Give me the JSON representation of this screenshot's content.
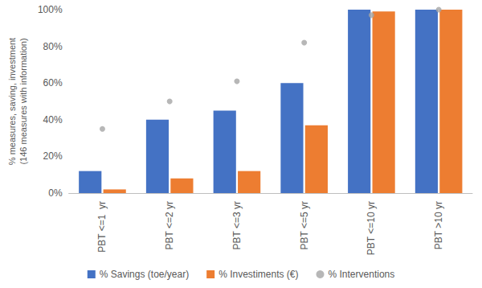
{
  "chart_data": {
    "type": "bar",
    "ylabel": "% measures, saving, investment\n(146 measures with information)",
    "categories": [
      "PBT <=1  yr",
      "PBT <=2 yr",
      "PBT <=3 yr",
      "PBT <=5 yr",
      "PBT <=10 yr",
      "PBT >10 yr"
    ],
    "series": [
      {
        "name": "% Savings (toe/year)",
        "type": "bar",
        "color": "#4472c4",
        "values": [
          12,
          40,
          45,
          60,
          100,
          100
        ]
      },
      {
        "name": "% Investiments (€)",
        "type": "bar",
        "color": "#ed7d31",
        "values": [
          2,
          8,
          12,
          37,
          99,
          100
        ]
      },
      {
        "name": "% Interventions",
        "type": "scatter",
        "marker": "circle",
        "color": "#a5a5a5",
        "values": [
          35,
          50,
          61,
          82,
          97,
          100
        ]
      }
    ],
    "ylim": [
      0,
      100
    ],
    "yticks": [
      {
        "value": 0,
        "label": "0%"
      },
      {
        "value": 20,
        "label": "20%"
      },
      {
        "value": 40,
        "label": "40%"
      },
      {
        "value": 60,
        "label": "60%"
      },
      {
        "value": 80,
        "label": "80%"
      },
      {
        "value": 100,
        "label": "100%"
      }
    ],
    "grid": false,
    "legend": "bottom"
  }
}
